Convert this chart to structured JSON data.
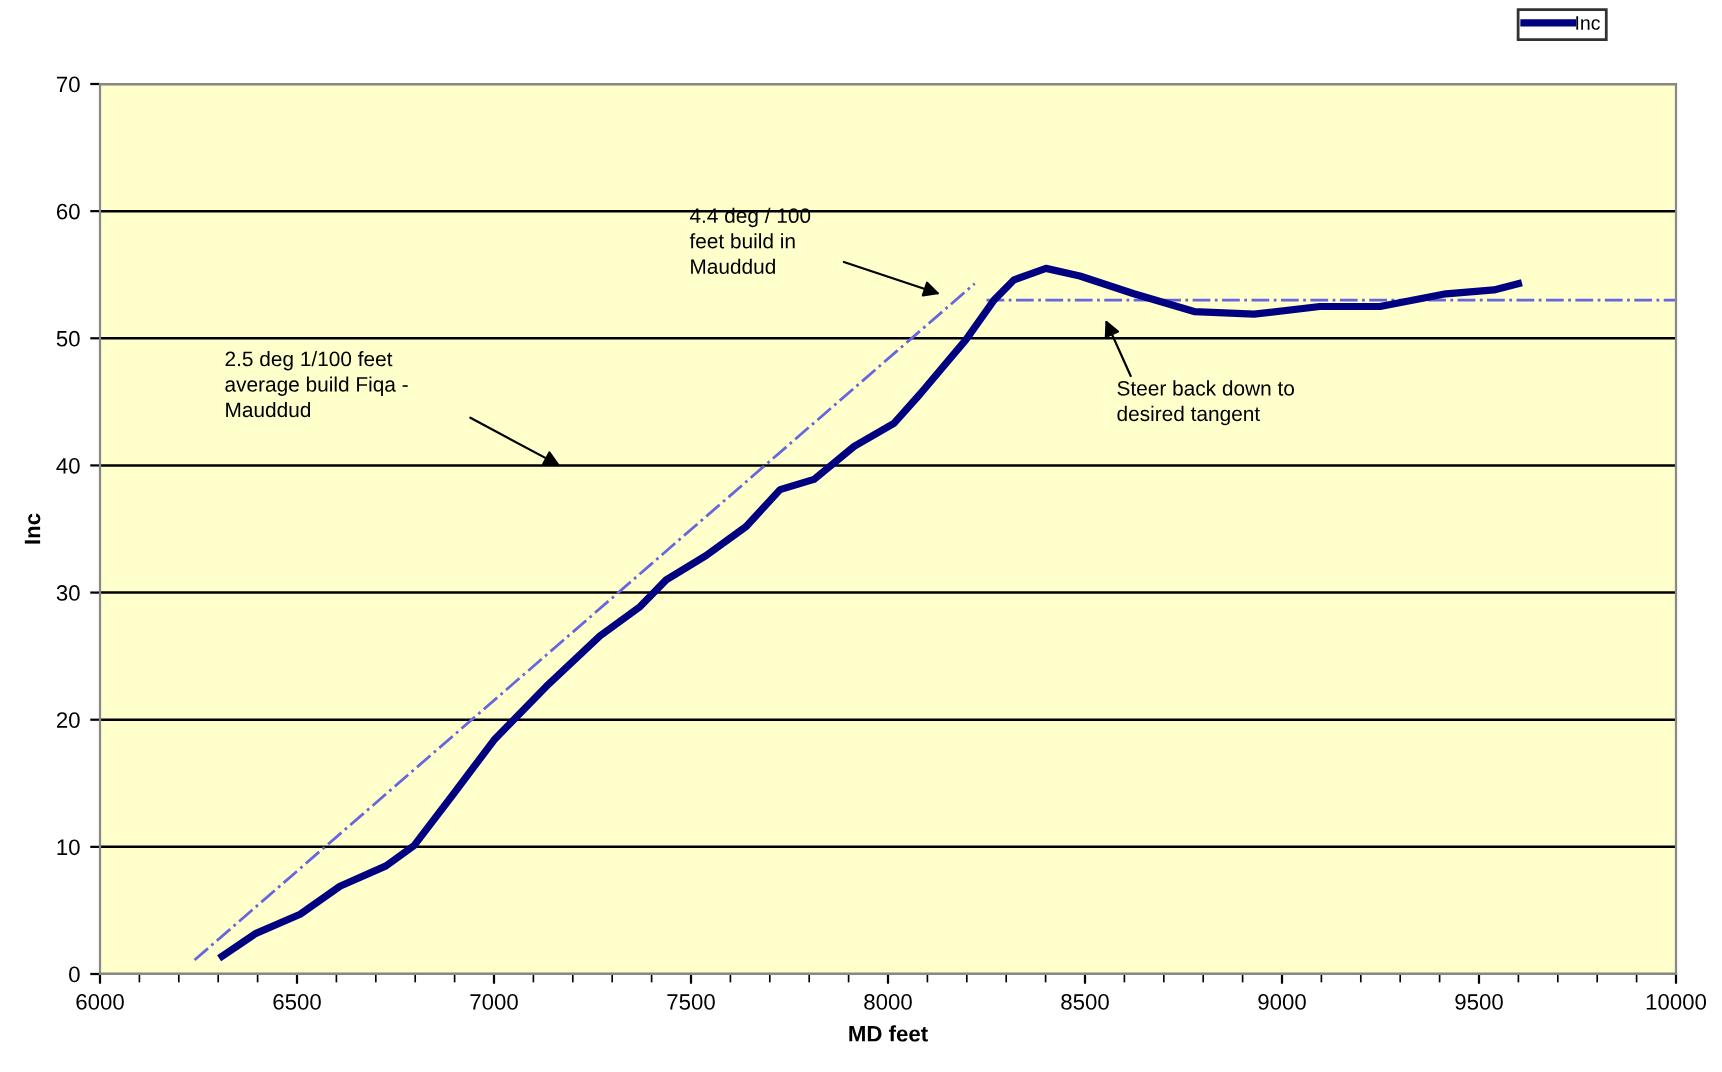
{
  "chart_data": {
    "type": "line",
    "xlabel": "MD feet",
    "ylabel": "Inc",
    "xlim": [
      6000,
      10000
    ],
    "xticks": [
      6000,
      6500,
      7000,
      7500,
      8000,
      8500,
      9000,
      9500,
      10000
    ],
    "ylim": [
      0,
      70
    ],
    "yticks": [
      0,
      10,
      20,
      30,
      40,
      50,
      60,
      70
    ],
    "grid": "y",
    "legend": "top right",
    "marker": "none",
    "series": [
      {
        "name": "Inc",
        "color": "#000080",
        "line_style": "solid",
        "x": [
          6310,
          6396,
          6508,
          6609,
          6726,
          6797,
          6898,
          7000,
          7132,
          7269,
          7371,
          7437,
          7538,
          7640,
          7726,
          7812,
          7914,
          8015,
          8081,
          8198,
          8269,
          8320,
          8401,
          8487,
          8624,
          8777,
          8929,
          9096,
          9249,
          9416,
          9538,
          9600
        ],
        "values": [
          1.4,
          3.2,
          4.7,
          6.9,
          8.5,
          10.1,
          14.2,
          18.4,
          22.6,
          26.6,
          28.9,
          31.0,
          32.9,
          35.2,
          38.1,
          38.9,
          41.5,
          43.3,
          45.6,
          49.9,
          53.0,
          54.6,
          55.5,
          54.9,
          53.5,
          52.1,
          51.9,
          52.5,
          52.5,
          53.5,
          53.8,
          54.3
        ]
      },
      {
        "color": "#6666dd",
        "line_style": "dashdot",
        "x": [
          6240,
          8220
        ],
        "values": [
          1.1,
          54.3
        ]
      },
      {
        "color": "#6666dd",
        "line_style": "dashdot",
        "x": [
          8250,
          10000
        ],
        "values": [
          53,
          53
        ]
      }
    ],
    "annotations": [
      "2.5 deg 1/100 feet\naverage build Fiqa -\nMauddud",
      "4.4 deg / 100\nfeet build in\nMauddud",
      "Steer back down to\ndesired tangent"
    ]
  }
}
